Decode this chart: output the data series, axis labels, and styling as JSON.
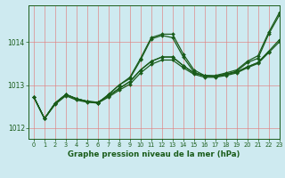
{
  "title": "Graphe pression niveau de la mer (hPa)",
  "background_color": "#ceeaf0",
  "line_color": "#1a5c1a",
  "xlim": [
    -0.5,
    23
  ],
  "ylim": [
    1011.75,
    1014.85
  ],
  "yticks": [
    1012,
    1013,
    1014
  ],
  "xticks": [
    0,
    1,
    2,
    3,
    4,
    5,
    6,
    7,
    8,
    9,
    10,
    11,
    12,
    13,
    14,
    15,
    16,
    17,
    18,
    19,
    20,
    21,
    22,
    23
  ],
  "series": [
    {
      "x": [
        0,
        1,
        2,
        3,
        4,
        5,
        6,
        7,
        8,
        9,
        10,
        11,
        12,
        13,
        14,
        15,
        16,
        17,
        18,
        19,
        20,
        21,
        22,
        23
      ],
      "y": [
        1012.72,
        1012.22,
        1012.58,
        1012.78,
        1012.68,
        1012.62,
        1012.58,
        1012.78,
        1013.0,
        1013.18,
        1013.62,
        1014.1,
        1014.18,
        1014.18,
        1013.72,
        1013.35,
        1013.22,
        1013.22,
        1013.28,
        1013.35,
        1013.55,
        1013.68,
        1014.22,
        1014.68
      ]
    },
    {
      "x": [
        0,
        1,
        2,
        3,
        4,
        5,
        6,
        7,
        8,
        9,
        10,
        11,
        12,
        13,
        14,
        15,
        16,
        17,
        18,
        19,
        20,
        21,
        22,
        23
      ],
      "y": [
        1012.72,
        1012.22,
        1012.58,
        1012.78,
        1012.68,
        1012.62,
        1012.58,
        1012.78,
        1013.0,
        1013.15,
        1013.58,
        1014.07,
        1014.15,
        1014.1,
        1013.65,
        1013.3,
        1013.2,
        1013.2,
        1013.25,
        1013.32,
        1013.52,
        1013.62,
        1014.18,
        1014.62
      ]
    },
    {
      "x": [
        0,
        1,
        2,
        3,
        4,
        5,
        6,
        7,
        8,
        9,
        10,
        11,
        12,
        13,
        14,
        15,
        16,
        17,
        18,
        19,
        20,
        21,
        22,
        23
      ],
      "y": [
        1012.72,
        1012.22,
        1012.58,
        1012.78,
        1012.68,
        1012.62,
        1012.6,
        1012.75,
        1012.92,
        1013.08,
        1013.35,
        1013.55,
        1013.65,
        1013.65,
        1013.45,
        1013.28,
        1013.22,
        1013.2,
        1013.25,
        1013.3,
        1013.42,
        1013.52,
        1013.78,
        1014.05
      ]
    },
    {
      "x": [
        0,
        1,
        2,
        3,
        4,
        5,
        6,
        7,
        8,
        9,
        10,
        11,
        12,
        13,
        14,
        15,
        16,
        17,
        18,
        19,
        20,
        21,
        22,
        23
      ],
      "y": [
        1012.72,
        1012.22,
        1012.55,
        1012.75,
        1012.65,
        1012.6,
        1012.58,
        1012.72,
        1012.88,
        1013.02,
        1013.28,
        1013.48,
        1013.58,
        1013.58,
        1013.4,
        1013.25,
        1013.18,
        1013.18,
        1013.22,
        1013.28,
        1013.4,
        1013.5,
        1013.75,
        1014.0
      ]
    },
    {
      "x": [
        0,
        1,
        2,
        3,
        4,
        5,
        6,
        7,
        8,
        9,
        10,
        11,
        12,
        13,
        14,
        15,
        16,
        17,
        18,
        19,
        20,
        21,
        22
      ],
      "y": [
        1012.72,
        1012.22,
        1012.58,
        1012.78,
        1012.68,
        1012.62,
        1012.6,
        1012.75,
        1012.92,
        1013.08,
        1013.35,
        1013.55,
        1013.65,
        1013.65,
        1013.45,
        1013.28,
        1013.22,
        1013.2,
        1013.25,
        1013.3,
        1013.42,
        1013.52,
        1013.78
      ]
    }
  ]
}
